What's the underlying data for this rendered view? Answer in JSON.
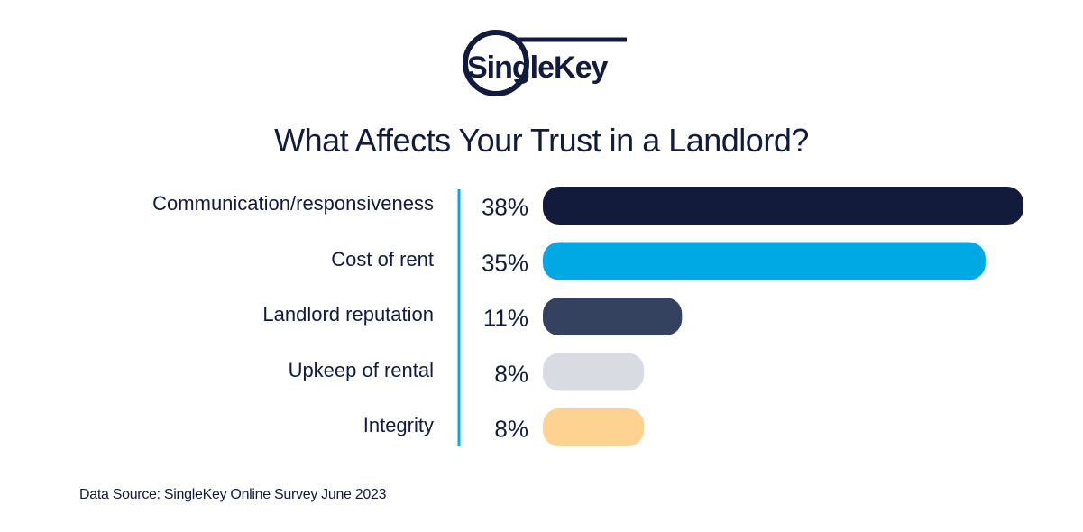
{
  "logo": {
    "text": "SingleKey"
  },
  "chart_data": {
    "type": "bar",
    "orientation": "horizontal",
    "title": "What Affects Your Trust in a Landlord?",
    "categories": [
      "Communication/responsiveness",
      "Cost of rent",
      "Landlord reputation",
      "Upkeep of rental",
      "Integrity"
    ],
    "values": [
      38,
      35,
      11,
      8,
      8
    ],
    "value_labels": [
      "38%",
      "35%",
      "11%",
      "8%",
      "8%"
    ],
    "colors": [
      "#131b3c",
      "#00a8e4",
      "#344260",
      "#d8dce2",
      "#fed392"
    ],
    "axis_color": "#00a8e4",
    "xlabel": "",
    "ylabel": "",
    "xlim": [
      0,
      38
    ],
    "grid": false
  },
  "source": "Data Source: SingleKey Online Survey June 2023"
}
